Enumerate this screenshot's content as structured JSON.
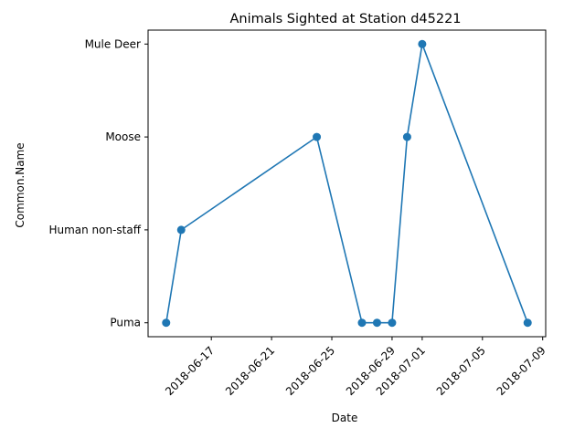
{
  "chart_data": {
    "type": "line",
    "title": "Animals Sighted at Station d45221",
    "xlabel": "Date",
    "ylabel": "Common.Name",
    "y_categories": [
      "Puma",
      "Human non-staff",
      "Moose",
      "Mule Deer"
    ],
    "x_ticks": [
      "2018-06-17",
      "2018-06-21",
      "2018-06-25",
      "2018-06-29",
      "2018-07-01",
      "2018-07-05",
      "2018-07-09"
    ],
    "x_range": [
      "2018-06-13",
      "2018-07-09"
    ],
    "series": [
      {
        "color": "#1f77b4",
        "marker": "circle",
        "x": [
          "2018-06-14",
          "2018-06-15",
          "2018-06-24",
          "2018-06-27",
          "2018-06-28",
          "2018-06-29",
          "2018-06-30",
          "2018-07-01",
          "2018-07-08"
        ],
        "y": [
          "Puma",
          "Human non-staff",
          "Moose",
          "Puma",
          "Puma",
          "Puma",
          "Moose",
          "Mule Deer",
          "Puma"
        ]
      }
    ],
    "grid": false,
    "legend": "none"
  }
}
